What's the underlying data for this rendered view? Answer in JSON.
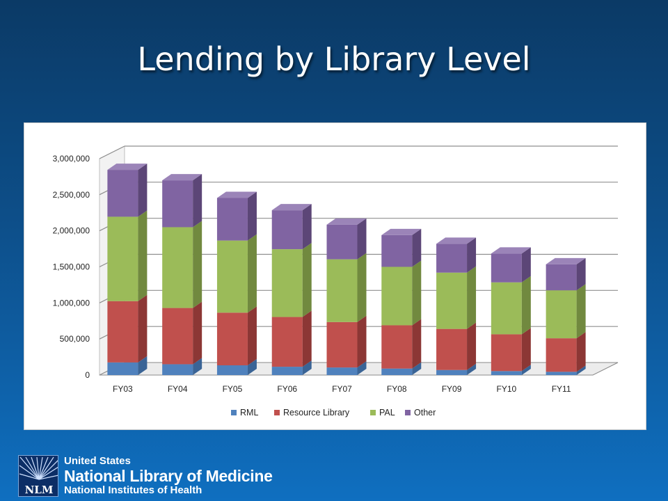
{
  "slide": {
    "title": "Lending by Library Level"
  },
  "logo": {
    "line1": "United States",
    "line2": "National Library of Medicine",
    "line3": "National Institutes of Health",
    "abbr": "NLM",
    "icon": "nlm-radiating-lines-logo"
  },
  "chart_data": {
    "type": "bar",
    "stacked": true,
    "three_d": true,
    "categories": [
      "FY03",
      "FY04",
      "FY05",
      "FY06",
      "FY07",
      "FY08",
      "FY09",
      "FY10",
      "FY11"
    ],
    "series": [
      {
        "name": "RML",
        "color": "#4f81bd",
        "side": "#3a6496",
        "top": "#6a96c9",
        "values": [
          175000,
          150000,
          135000,
          115000,
          105000,
          90000,
          70000,
          55000,
          45000
        ]
      },
      {
        "name": "Resource Library",
        "color": "#c0504d",
        "side": "#8c3735",
        "top": "#cf6e6b",
        "values": [
          850000,
          780000,
          730000,
          690000,
          630000,
          600000,
          570000,
          510000,
          465000
        ]
      },
      {
        "name": "PAL",
        "color": "#9bbb59",
        "side": "#71893f",
        "top": "#afcb76",
        "values": [
          1170000,
          1120000,
          1000000,
          940000,
          870000,
          810000,
          780000,
          720000,
          665000
        ]
      },
      {
        "name": "Other",
        "color": "#8064a2",
        "side": "#5c4677",
        "top": "#9b84b8",
        "values": [
          650000,
          650000,
          590000,
          540000,
          480000,
          440000,
          400000,
          400000,
          360000
        ]
      }
    ],
    "y_ticks": [
      "0",
      "500,000",
      "1,000,000",
      "1,500,000",
      "2,000,000",
      "2,500,000",
      "3,000,000"
    ],
    "ylim": [
      0,
      3000000
    ],
    "grid": true,
    "legend_position": "bottom"
  }
}
